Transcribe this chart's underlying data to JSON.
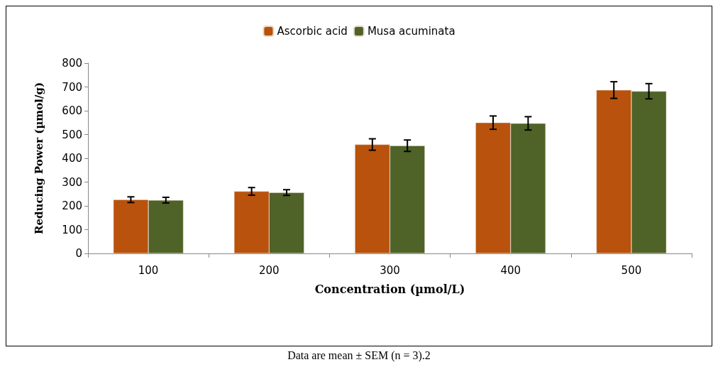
{
  "chart_data": {
    "type": "bar",
    "xlabel": "Concentration (µmol/L)",
    "ylabel": "Reducing Power (µmol/g)",
    "categories": [
      "100",
      "200",
      "300",
      "400",
      "500"
    ],
    "series": [
      {
        "name": "Ascorbic acid",
        "color": "#b8520c",
        "values": [
          226,
          261,
          458,
          550,
          687
        ],
        "errors": [
          12,
          16,
          24,
          28,
          35
        ]
      },
      {
        "name": "Musa acuminata",
        "color": "#4f6228",
        "values": [
          224,
          256,
          453,
          547,
          682
        ],
        "errors": [
          12,
          12,
          24,
          28,
          32
        ]
      }
    ],
    "ylim": [
      0,
      800
    ],
    "yticks": [
      0,
      100,
      200,
      300,
      400,
      500,
      600,
      700,
      800
    ],
    "grid": false,
    "legend": "top",
    "annotations": [
      "Data are mean ± SEM (n = 3).2"
    ]
  }
}
